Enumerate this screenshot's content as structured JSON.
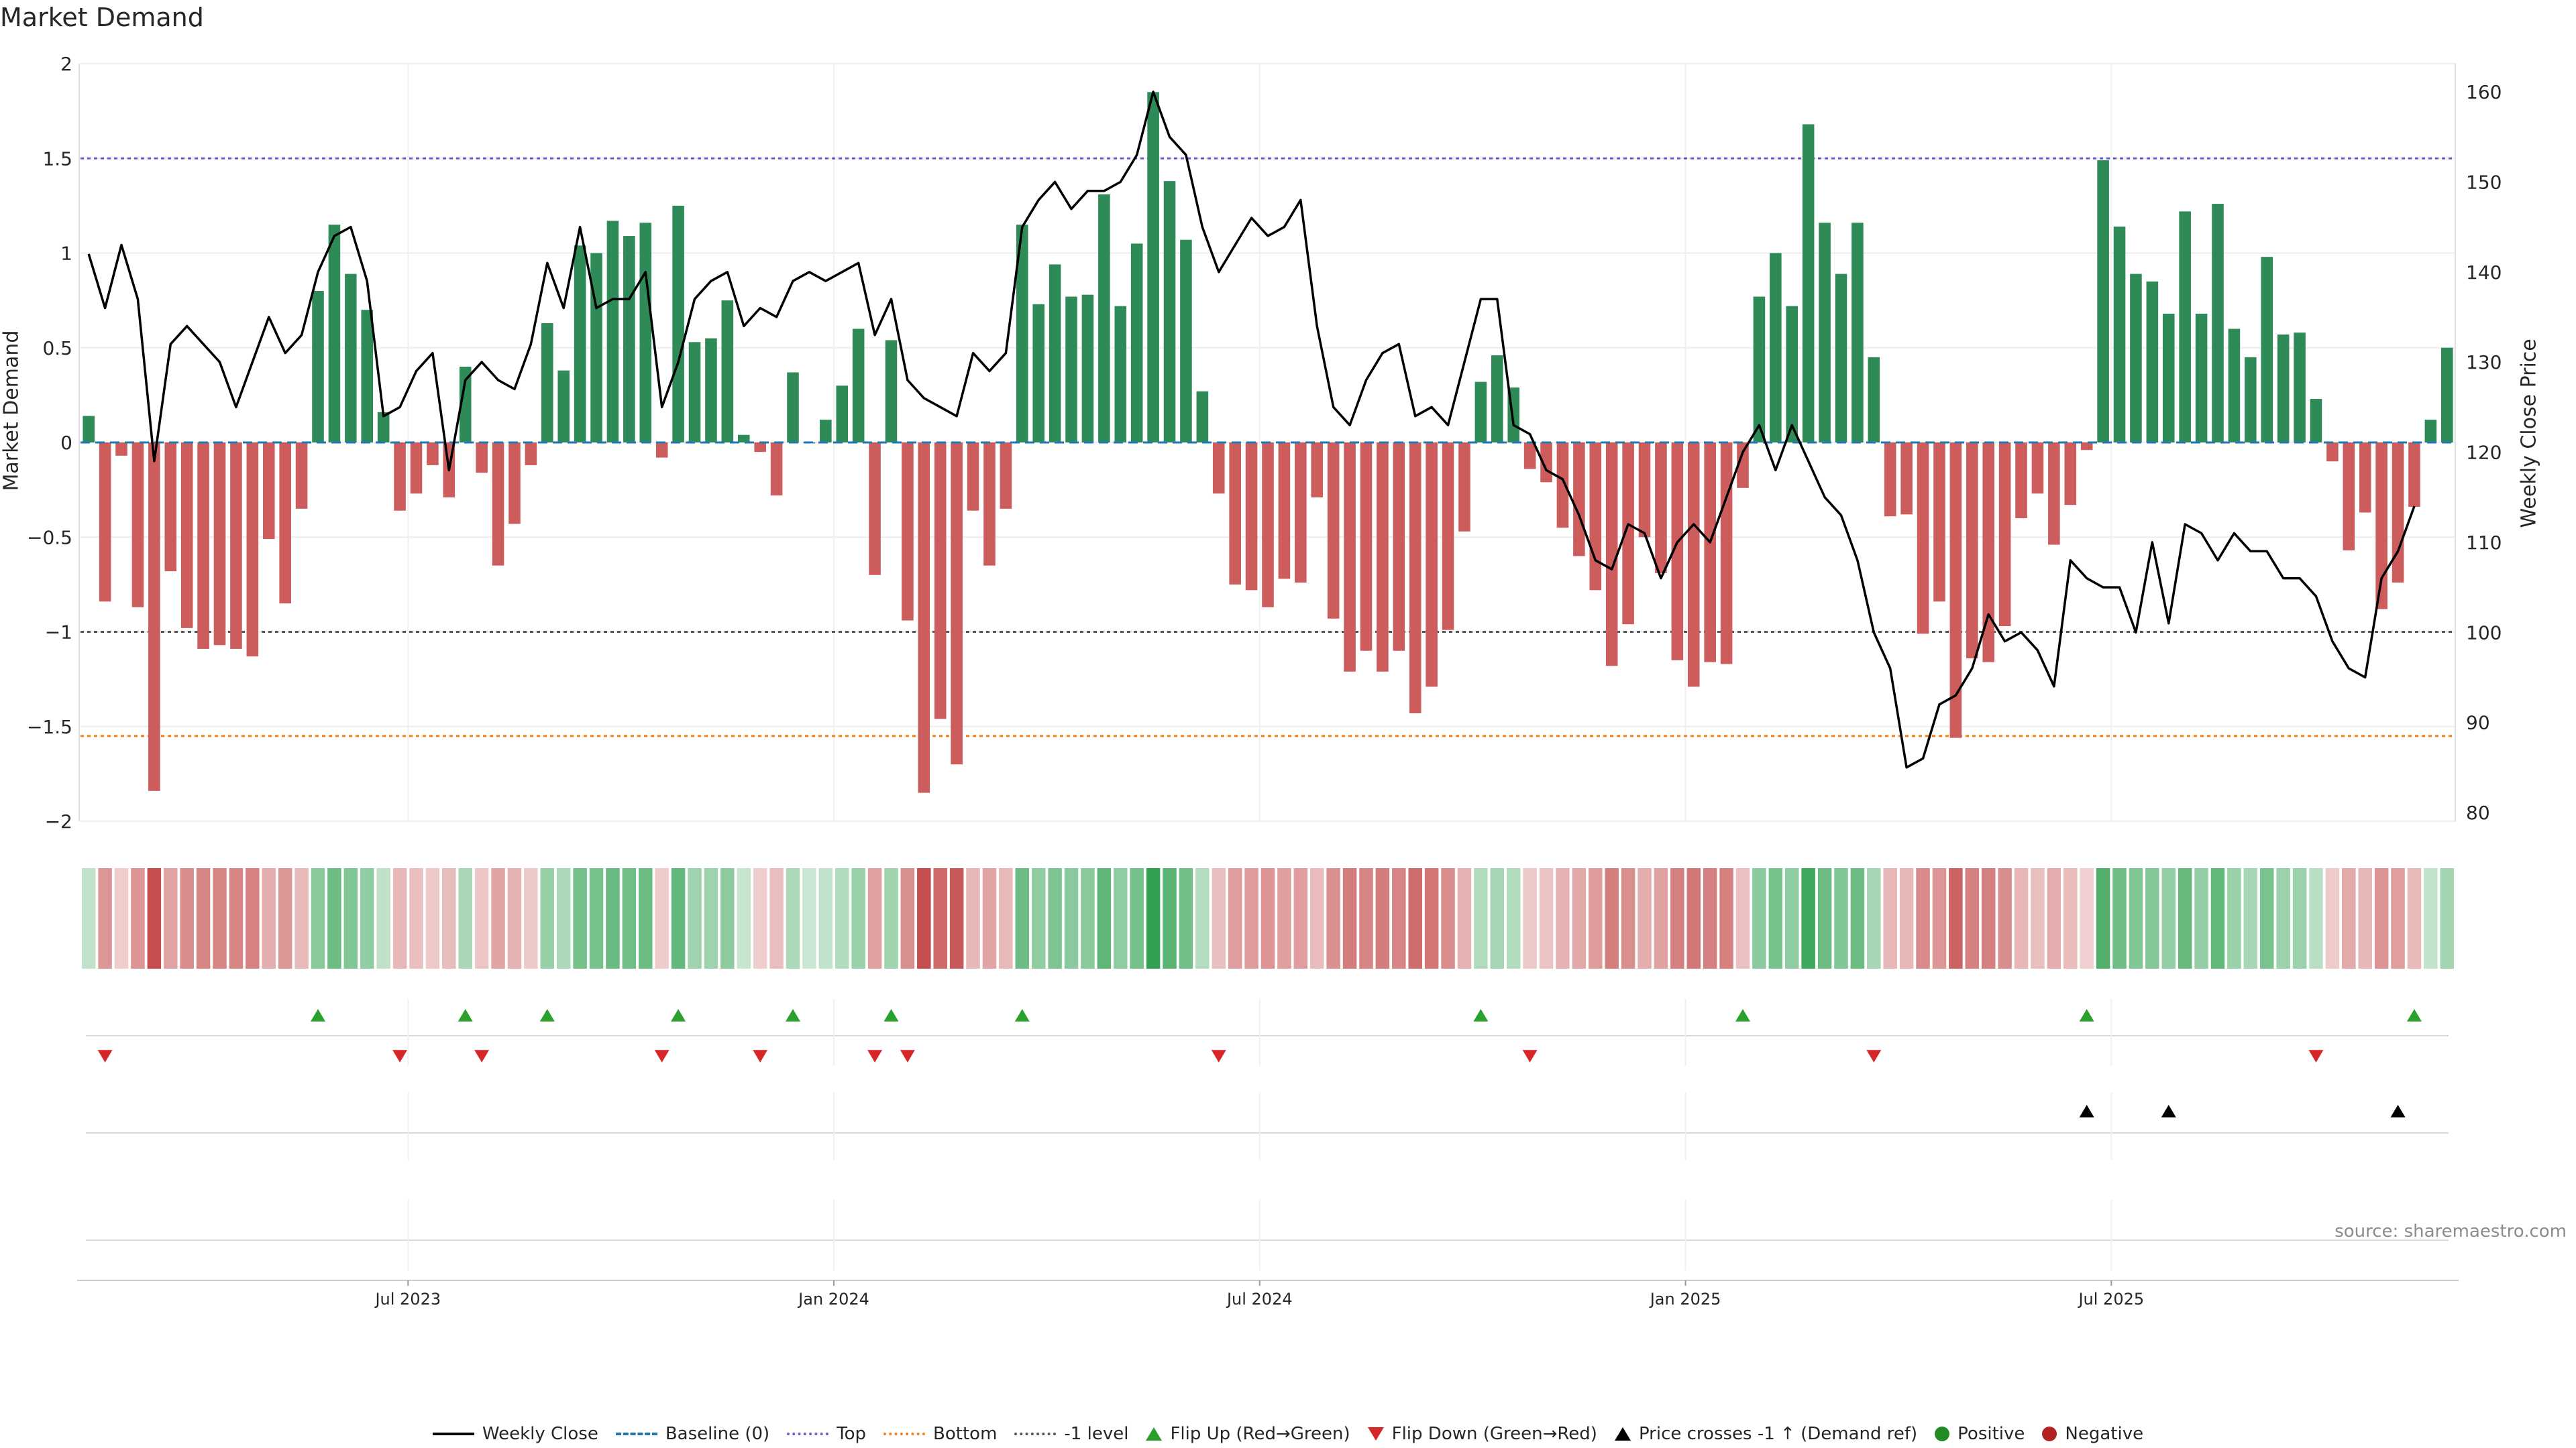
{
  "title": "Market Demand",
  "source": "source: sharemaestro.com",
  "chart_data": {
    "type": "bar",
    "title": "Market Demand",
    "ylabel_left": "Market Demand",
    "ylabel_right": "Weekly Close Price",
    "ylim_left": [
      -2,
      2
    ],
    "ylim_right": [
      80,
      160
    ],
    "yticks_left": [
      2,
      1.5,
      1,
      0.5,
      0,
      -0.5,
      -1,
      -1.5,
      -2
    ],
    "yticks_left_labels": [
      "2",
      "1.5",
      "1",
      "0.5",
      "0",
      "−0.5",
      "−1",
      "−1.5",
      "−2"
    ],
    "yticks_right": [
      160,
      150,
      140,
      130,
      120,
      110,
      100,
      90,
      80
    ],
    "x_ticks": [
      "Jul 2023",
      "Jan 2024",
      "Jul 2024",
      "Jan 2025",
      "Jul 2025"
    ],
    "x_tick_weeks": [
      20,
      46,
      72,
      98,
      124
    ],
    "reference_lines": {
      "top": 1.5,
      "baseline": 0,
      "minus_one": -1,
      "bottom": -1.55
    },
    "demand": [
      0.14,
      -0.84,
      -0.07,
      -0.87,
      -1.84,
      -0.68,
      -0.98,
      -1.09,
      -1.07,
      -1.09,
      -1.13,
      -0.51,
      -0.85,
      -0.35,
      0.8,
      1.15,
      0.89,
      0.7,
      0.16,
      -0.36,
      -0.27,
      -0.12,
      -0.29,
      0.4,
      -0.16,
      -0.65,
      -0.43,
      -0.12,
      0.63,
      0.38,
      1.04,
      1.0,
      1.17,
      1.09,
      1.16,
      -0.08,
      1.25,
      0.53,
      0.55,
      0.75,
      0.04,
      -0.05,
      -0.28,
      0.37,
      0.0,
      0.12,
      0.3,
      0.6,
      -0.7,
      0.54,
      -0.94,
      -1.85,
      -1.46,
      -1.7,
      -0.36,
      -0.65,
      -0.35,
      1.15,
      0.73,
      0.94,
      0.77,
      0.78,
      1.31,
      0.72,
      1.05,
      1.85,
      1.38,
      1.07,
      0.27,
      -0.27,
      -0.75,
      -0.78,
      -0.87,
      -0.72,
      -0.74,
      -0.29,
      -0.93,
      -1.21,
      -1.1,
      -1.21,
      -1.1,
      -1.43,
      -1.29,
      -0.99,
      -0.47,
      0.32,
      0.46,
      0.29,
      -0.14,
      -0.21,
      -0.45,
      -0.6,
      -0.78,
      -1.18,
      -0.96,
      -0.5,
      -0.69,
      -1.15,
      -1.29,
      -1.16,
      -1.17,
      -0.24,
      0.77,
      1.0,
      0.72,
      1.68,
      1.16,
      0.89,
      1.16,
      0.45,
      -0.39,
      -0.38,
      -1.01,
      -0.84,
      -1.56,
      -1.14,
      -1.16,
      -0.97,
      -0.4,
      -0.27,
      -0.54,
      -0.33,
      -0.04,
      1.49,
      1.14,
      0.89,
      0.85,
      0.68,
      1.22,
      0.68,
      1.26,
      0.6,
      0.45,
      0.98,
      0.57,
      0.58,
      0.23,
      -0.1,
      -0.57,
      -0.37,
      -0.88,
      -0.74,
      -0.34,
      0.12,
      0.5
    ],
    "weekly_close": [
      142,
      136,
      143,
      137,
      119,
      132,
      134,
      132,
      130,
      125,
      130,
      135,
      131,
      133,
      140,
      144,
      145,
      139,
      124,
      125,
      129,
      131,
      118,
      128,
      130,
      128,
      127,
      132,
      141,
      136,
      145,
      136,
      137,
      137,
      140,
      125,
      130,
      137,
      139,
      140,
      134,
      136,
      135,
      139,
      140,
      139,
      140,
      141,
      133,
      137,
      128,
      126,
      125,
      124,
      131,
      129,
      131,
      145,
      148,
      150,
      147,
      149,
      149,
      150,
      153,
      160,
      155,
      153,
      145,
      140,
      143,
      146,
      144,
      145,
      148,
      134,
      125,
      123,
      128,
      131,
      132,
      124,
      125,
      123,
      130,
      137,
      137,
      123,
      122,
      118,
      117,
      113,
      108,
      107,
      112,
      111,
      106,
      110,
      112,
      110,
      115,
      120,
      123,
      118,
      123,
      119,
      115,
      113,
      108,
      100,
      96,
      85,
      86,
      92,
      93,
      96,
      102,
      99,
      100,
      98,
      94,
      108,
      106,
      105,
      105,
      100,
      110,
      101,
      112,
      111,
      108,
      111,
      109,
      109,
      106,
      106,
      104,
      99,
      96,
      95,
      106,
      109,
      114
    ],
    "flip_up_weeks": [
      14,
      23,
      28,
      36,
      43,
      49,
      57,
      85,
      101,
      122,
      142
    ],
    "flip_down_weeks": [
      1,
      19,
      24,
      35,
      41,
      48,
      50,
      69,
      88,
      109,
      136
    ],
    "price_cross_weeks": [
      122,
      127,
      141
    ],
    "series": [
      {
        "name": "Market Demand",
        "type": "bar",
        "positive_color": "#2e8b57",
        "negative_color": "#cd5c5c"
      },
      {
        "name": "Weekly Close",
        "type": "line",
        "color": "#000000"
      }
    ]
  },
  "legend": [
    {
      "label": "Weekly Close",
      "kind": "line",
      "color": "#000000"
    },
    {
      "label": "Baseline (0)",
      "kind": "dash",
      "color": "#1f77b4"
    },
    {
      "label": "Top",
      "kind": "dot",
      "color": "#6a5acd"
    },
    {
      "label": "Bottom",
      "kind": "dot",
      "color": "#ff7f0e"
    },
    {
      "label": "-1 level",
      "kind": "dot",
      "color": "#555555"
    },
    {
      "label": "Flip Up (Red→Green)",
      "kind": "tri-up",
      "color": "#2ca02c"
    },
    {
      "label": "Flip Down (Green→Red)",
      "kind": "tri-down",
      "color": "#d62728"
    },
    {
      "label": "Price crosses -1 ↑ (Demand ref)",
      "kind": "tri-up",
      "color": "#000000"
    },
    {
      "label": "Positive",
      "kind": "circle",
      "color": "#228b22"
    },
    {
      "label": "Negative",
      "kind": "circle",
      "color": "#b22222"
    }
  ],
  "colors": {
    "positive": "#2e8b57",
    "negative": "#cd5c5c",
    "top": "#6a5acd",
    "bottom": "#ff7f0e",
    "baseline": "#1f77b4",
    "minus_one": "#555555",
    "flip_up": "#2ca02c",
    "flip_down": "#d62728",
    "price_cross": "#000000"
  }
}
